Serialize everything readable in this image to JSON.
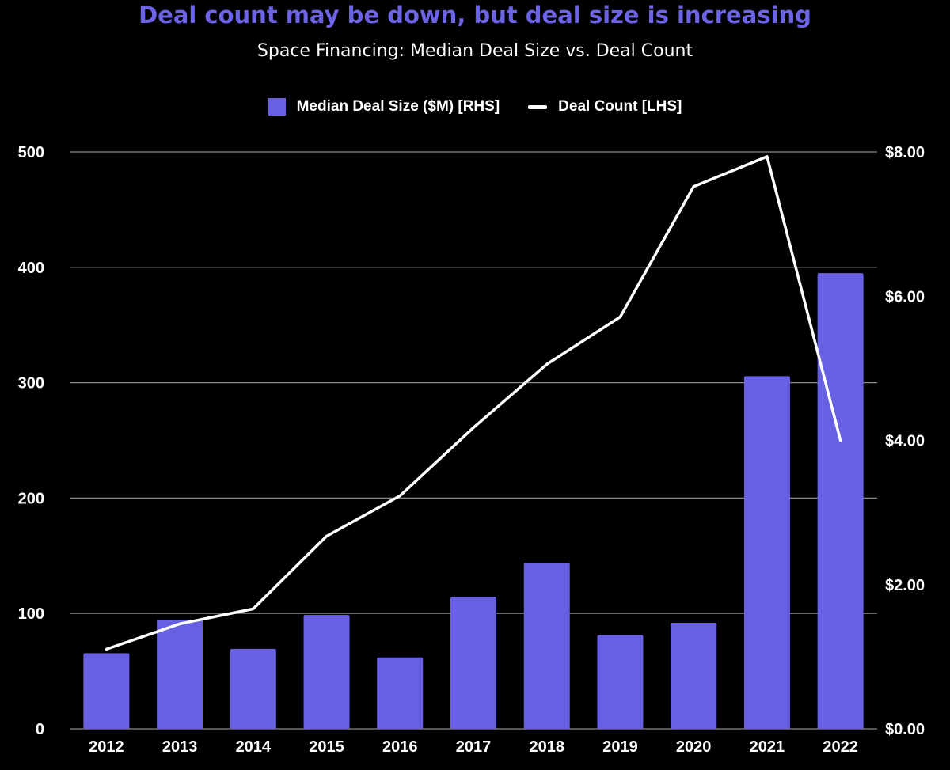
{
  "chart_data": {
    "type": "bar",
    "title": "Deal count may be down, but deal size is increasing",
    "subtitle": "Space Financing: Median Deal Size vs. Deal Count",
    "categories": [
      "2012",
      "2013",
      "2014",
      "2015",
      "2016",
      "2017",
      "2018",
      "2019",
      "2020",
      "2021",
      "2022"
    ],
    "series": [
      {
        "name": "Median Deal Size ($M) [RHS]",
        "type": "bar",
        "axis": "right",
        "color": "#6760e3",
        "values": [
          1.05,
          1.51,
          1.11,
          1.58,
          0.99,
          1.83,
          2.3,
          1.3,
          1.47,
          4.89,
          6.32
        ]
      },
      {
        "name": "Deal Count [LHS]",
        "type": "line",
        "axis": "left",
        "color": "#ffffff",
        "values": [
          69,
          91,
          104,
          167,
          202,
          261,
          316,
          357,
          470,
          496,
          250
        ]
      }
    ],
    "left_axis": {
      "ylim": [
        0,
        500
      ],
      "ticks": [
        "0",
        "100",
        "200",
        "300",
        "400",
        "500"
      ]
    },
    "right_axis": {
      "ylim": [
        0,
        8
      ],
      "ticks": [
        "$0.00",
        "$2.00",
        "$4.00",
        "$6.00",
        "$8.00"
      ]
    },
    "grid": true,
    "legend_position": "top-center"
  }
}
